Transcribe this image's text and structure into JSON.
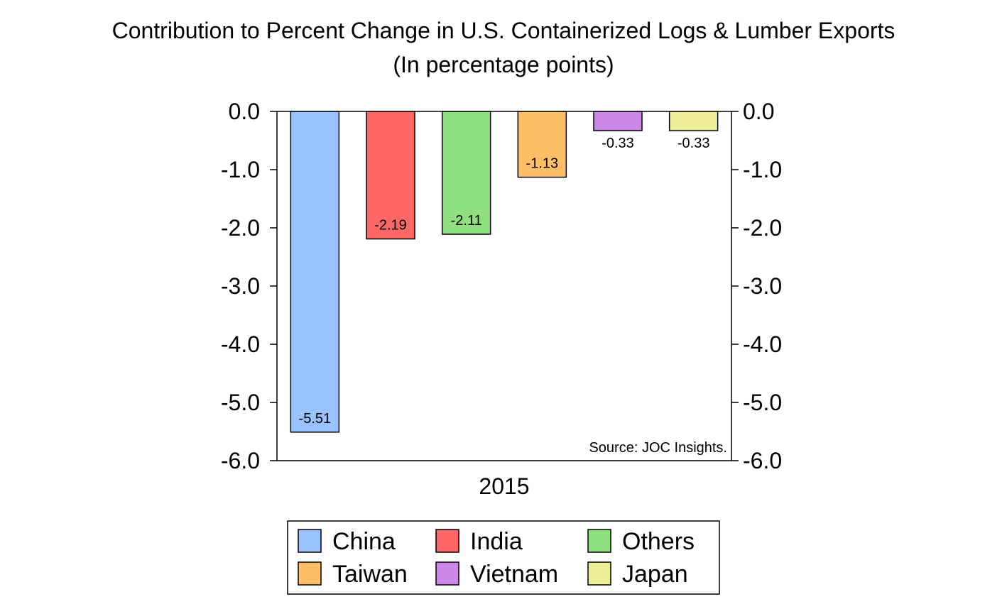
{
  "chart_data": {
    "type": "bar",
    "title": "Contribution to Percent Change in U.S. Containerized Logs & Lumber Exports",
    "subtitle": "(In percentage points)",
    "xlabel": "",
    "ylabel": "",
    "category": "2015",
    "ylim": [
      -6.0,
      0.0
    ],
    "yticks": [
      0.0,
      -1.0,
      -2.0,
      -3.0,
      -4.0,
      -5.0,
      -6.0
    ],
    "ytick_labels": [
      "0.0",
      "-1.0",
      "-2.0",
      "-3.0",
      "-4.0",
      "-5.0",
      "-6.0"
    ],
    "grid": false,
    "legend_position": "bottom-center",
    "series": [
      {
        "name": "China",
        "value": -5.51,
        "label": "-5.51",
        "color": "#99c2ff"
      },
      {
        "name": "India",
        "value": -2.19,
        "label": "-2.19",
        "color": "#ff6666"
      },
      {
        "name": "Others",
        "value": -2.11,
        "label": "-2.11",
        "color": "#8ee07e"
      },
      {
        "name": "Taiwan",
        "value": -1.13,
        "label": "-1.13",
        "color": "#ffbf66"
      },
      {
        "name": "Vietnam",
        "value": -0.33,
        "label": "-0.33",
        "color": "#cc88e6"
      },
      {
        "name": "Japan",
        "value": -0.33,
        "label": "-0.33",
        "color": "#eeee99"
      }
    ],
    "annotation": "Source: JOC Insights."
  }
}
